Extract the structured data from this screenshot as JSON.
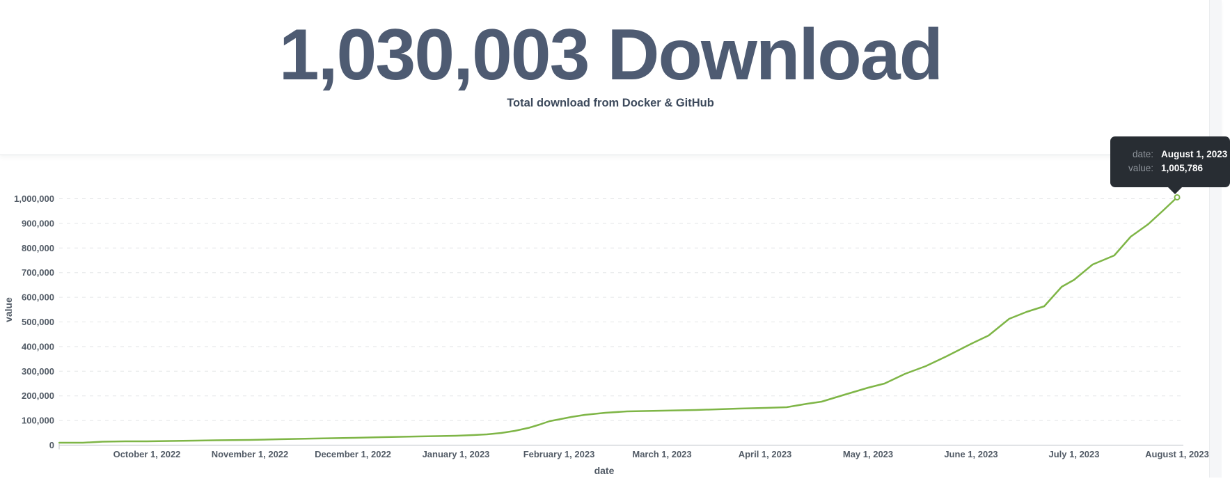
{
  "header": {
    "title": "1,030,003 Download",
    "subtitle": "Total download from Docker & GitHub"
  },
  "tooltip": {
    "date_label": "date:",
    "date_value": "August 1, 2023",
    "value_label": "value:",
    "value_value": "1,005,786"
  },
  "chart_data": {
    "type": "line",
    "title": "",
    "xlabel": "date",
    "ylabel": "value",
    "x_ticks": [
      "October 1, 2022",
      "November 1, 2022",
      "December 1, 2022",
      "January 1, 2023",
      "February 1, 2023",
      "March 1, 2023",
      "April 1, 2023",
      "May 1, 2023",
      "June 1, 2023",
      "July 1, 2023",
      "August 1, 2023"
    ],
    "y_tick_labels": [
      "0",
      "100,000",
      "200,000",
      "300,000",
      "400,000",
      "500,000",
      "600,000",
      "700,000",
      "800,000",
      "900,000",
      "1,000,000"
    ],
    "y_tick_values": [
      0,
      100000,
      200000,
      300000,
      400000,
      500000,
      600000,
      700000,
      800000,
      900000,
      1000000
    ],
    "ylim": [
      0,
      1030000
    ],
    "grid": "dashed-horizontal",
    "legend": "none",
    "line_color": "#7eb546",
    "series": [
      {
        "name": "value",
        "x_unit": "months_after_oct1_2022",
        "points": [
          [
            -0.85,
            9900
          ],
          [
            -0.62,
            9900
          ],
          [
            -0.43,
            14100
          ],
          [
            -0.21,
            15500
          ],
          [
            0.0,
            15500
          ],
          [
            0.23,
            17000
          ],
          [
            0.47,
            18400
          ],
          [
            0.67,
            19800
          ],
          [
            1.0,
            21200
          ],
          [
            1.28,
            24000
          ],
          [
            1.62,
            26800
          ],
          [
            2.0,
            29700
          ],
          [
            2.29,
            32500
          ],
          [
            2.63,
            35300
          ],
          [
            3.0,
            38100
          ],
          [
            3.17,
            41000
          ],
          [
            3.3,
            43800
          ],
          [
            3.44,
            49400
          ],
          [
            3.57,
            57900
          ],
          [
            3.71,
            70600
          ],
          [
            3.81,
            83300
          ],
          [
            3.91,
            97500
          ],
          [
            4.0,
            104500
          ],
          [
            4.12,
            114400
          ],
          [
            4.25,
            122900
          ],
          [
            4.45,
            131400
          ],
          [
            4.66,
            137000
          ],
          [
            5.0,
            139800
          ],
          [
            5.33,
            142700
          ],
          [
            5.74,
            148300
          ],
          [
            6.0,
            151100
          ],
          [
            6.21,
            154000
          ],
          [
            6.41,
            168100
          ],
          [
            6.55,
            176600
          ],
          [
            6.75,
            202000
          ],
          [
            7.0,
            233100
          ],
          [
            7.16,
            250000
          ],
          [
            7.36,
            289600
          ],
          [
            7.56,
            320600
          ],
          [
            7.76,
            360200
          ],
          [
            8.0,
            411000
          ],
          [
            8.17,
            445000
          ],
          [
            8.37,
            512800
          ],
          [
            8.54,
            541000
          ],
          [
            8.71,
            563600
          ],
          [
            8.88,
            642700
          ],
          [
            9.0,
            670900
          ],
          [
            9.18,
            733100
          ],
          [
            9.39,
            769800
          ],
          [
            9.55,
            846100
          ],
          [
            9.72,
            896900
          ],
          [
            9.86,
            950600
          ],
          [
            10.0,
            1005786
          ]
        ]
      }
    ],
    "highlight_point": {
      "date": "August 1, 2023",
      "value": 1005786
    }
  }
}
